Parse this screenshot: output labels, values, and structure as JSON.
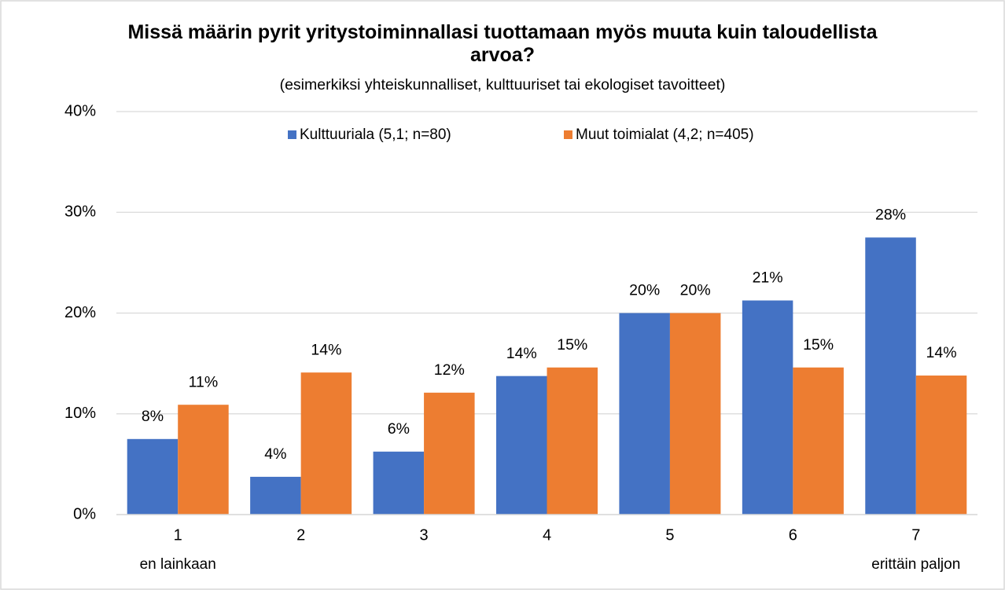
{
  "chart_data": {
    "type": "bar",
    "title": "Missä määrin pyrit yritystoiminnallasi tuottamaan myös muuta kuin taloudellista arvoa?",
    "subtitle": "(esimerkiksi yhteiskunnalliset, kulttuuriset tai ekologiset tavoitteet)",
    "categories": [
      "1",
      "2",
      "3",
      "4",
      "5",
      "6",
      "7"
    ],
    "x_sublabels": [
      "en lainkaan",
      null,
      null,
      null,
      null,
      null,
      "erittäin paljon"
    ],
    "series": [
      {
        "name": "Kulttuuriala (5,1; n=80)",
        "color": "#4472c4",
        "values": [
          7.5,
          3.75,
          6.25,
          13.75,
          20,
          21.25,
          27.5
        ],
        "value_labels": [
          "8%",
          "4%",
          "6%",
          "14%",
          "20%",
          "21%",
          "28%"
        ]
      },
      {
        "name": "Muut toimialat (4,2; n=405)",
        "color": "#ed7d31",
        "values": [
          10.9,
          14.1,
          12.1,
          14.6,
          20,
          14.6,
          13.8
        ],
        "value_labels": [
          "11%",
          "14%",
          "12%",
          "15%",
          "20%",
          "15%",
          "14%"
        ]
      }
    ],
    "ylim": [
      0,
      40
    ],
    "yticks": [
      {
        "value": 0,
        "label": "0%"
      },
      {
        "value": 10,
        "label": "10%"
      },
      {
        "value": 20,
        "label": "20%"
      },
      {
        "value": 30,
        "label": "30%"
      },
      {
        "value": 40,
        "label": "40%"
      }
    ],
    "grid": true,
    "legend": "top"
  }
}
